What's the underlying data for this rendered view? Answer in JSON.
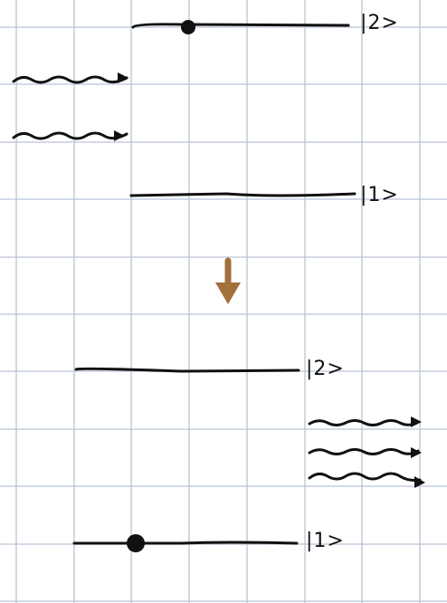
{
  "diagram": {
    "before": {
      "upper_level": {
        "label": "|2>"
      },
      "lower_level": {
        "label": "|1>"
      }
    },
    "after": {
      "upper_level": {
        "label": "|2>"
      },
      "lower_level": {
        "label": "|1>"
      }
    }
  }
}
